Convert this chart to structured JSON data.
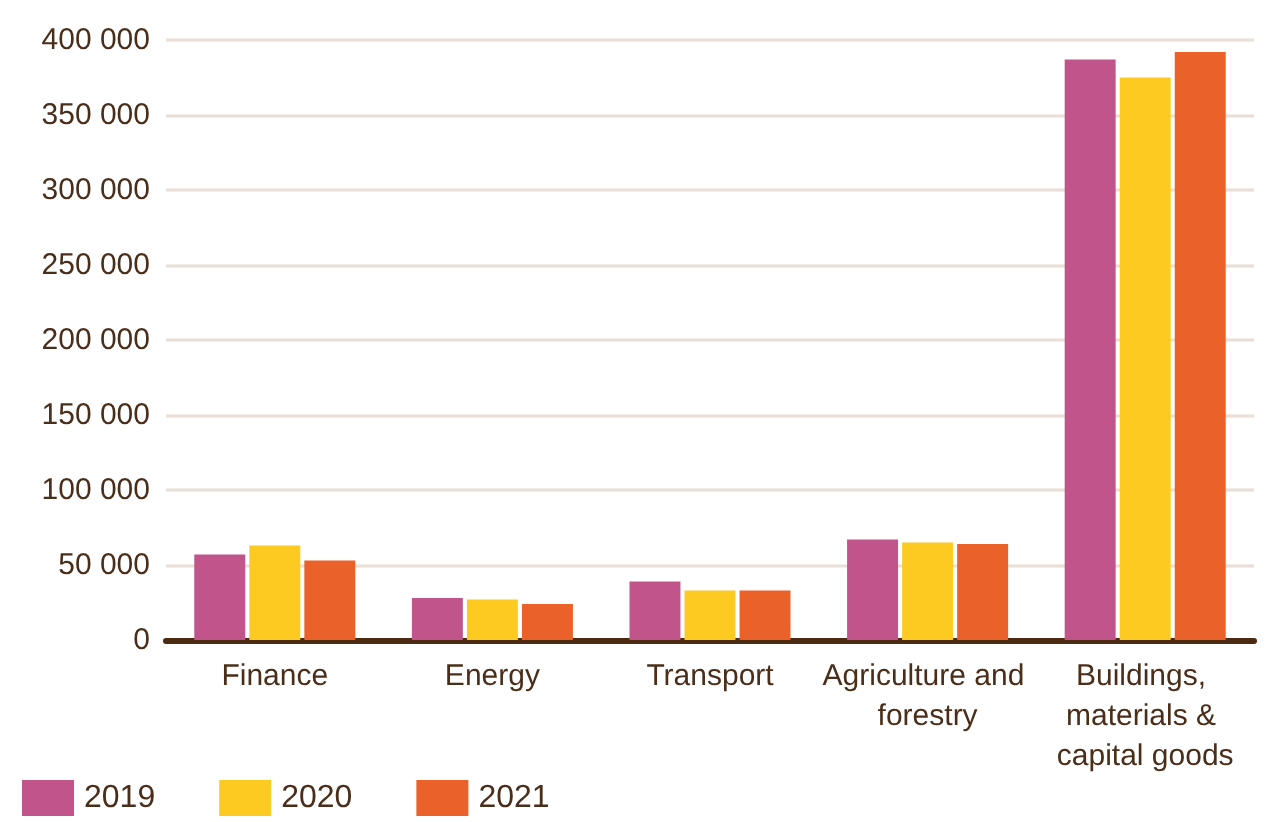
{
  "chart_data": {
    "type": "bar",
    "categories": [
      "Finance",
      "Energy",
      "Transport",
      "Agriculture and forestry",
      "Buildings, materials & capital goods"
    ],
    "series": [
      {
        "name": "2019",
        "color": "#c0548b",
        "values": [
          57000,
          28000,
          39000,
          67000,
          387000
        ]
      },
      {
        "name": "2020",
        "color": "#fdca22",
        "values": [
          63000,
          27000,
          33000,
          65000,
          375000
        ]
      },
      {
        "name": "2021",
        "color": "#ea6129",
        "values": [
          53000,
          24000,
          33000,
          64000,
          392000
        ]
      }
    ],
    "ylim": [
      0,
      400000
    ],
    "yticks": [
      {
        "value": 0,
        "label": "0"
      },
      {
        "value": 50000,
        "label": "50 000"
      },
      {
        "value": 100000,
        "label": "100 000"
      },
      {
        "value": 150000,
        "label": "150 000"
      },
      {
        "value": 200000,
        "label": "200 000"
      },
      {
        "value": 250000,
        "label": "250 000"
      },
      {
        "value": 300000,
        "label": "300 000"
      },
      {
        "value": 350000,
        "label": "350 000"
      },
      {
        "value": 400000,
        "label": "400 000"
      }
    ],
    "grid": "y",
    "legend": "bottom left"
  }
}
